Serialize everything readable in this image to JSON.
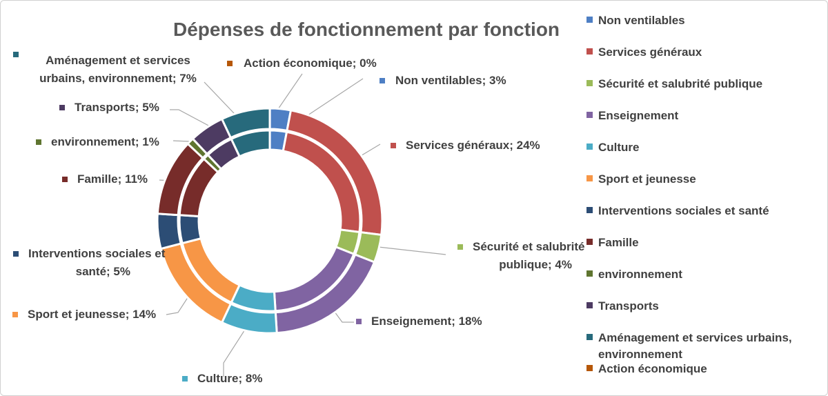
{
  "chart_data": {
    "type": "pie",
    "style": "double-ring donut",
    "title": "Dépenses de fonctionnement par fonction",
    "legend_position": "right",
    "data_label_format": "category; percent",
    "slices": [
      {
        "label": "Non ventilables",
        "value": 3,
        "color": "#4e7fc4",
        "data_label": "Non ventilables; 3%"
      },
      {
        "label": "Services généraux",
        "value": 24,
        "color": "#c0504d",
        "data_label": "Services généraux; 24%"
      },
      {
        "label": "Sécurité et salubrité publique",
        "value": 4,
        "color": "#9bbb59",
        "data_label": "Sécurité et salubrité publique; 4%"
      },
      {
        "label": "Enseignement",
        "value": 18,
        "color": "#8064a2",
        "data_label": "Enseignement; 18%"
      },
      {
        "label": "Culture",
        "value": 8,
        "color": "#4bacc6",
        "data_label": "Culture; 8%"
      },
      {
        "label": "Sport et jeunesse",
        "value": 14,
        "color": "#f79646",
        "data_label": "Sport et jeunesse; 14%"
      },
      {
        "label": "Interventions sociales et santé",
        "value": 5,
        "color": "#2c4d75",
        "data_label": "Interventions sociales et santé; 5%"
      },
      {
        "label": "Famille",
        "value": 11,
        "color": "#772c2a",
        "data_label": "Famille; 11%"
      },
      {
        "label": "environnement",
        "value": 1,
        "color": "#5f7530",
        "data_label": "environnement; 1%"
      },
      {
        "label": "Transports",
        "value": 5,
        "color": "#4d3b62",
        "data_label": "Transports; 5%"
      },
      {
        "label": "Aménagement et services urbains, environnement",
        "value": 7,
        "color": "#276a7c",
        "data_label": "Aménagement et services urbains, environnement; 7%"
      },
      {
        "label": "Action économique",
        "value": 0,
        "color": "#b65708",
        "data_label": "Action économique; 0%"
      }
    ]
  }
}
